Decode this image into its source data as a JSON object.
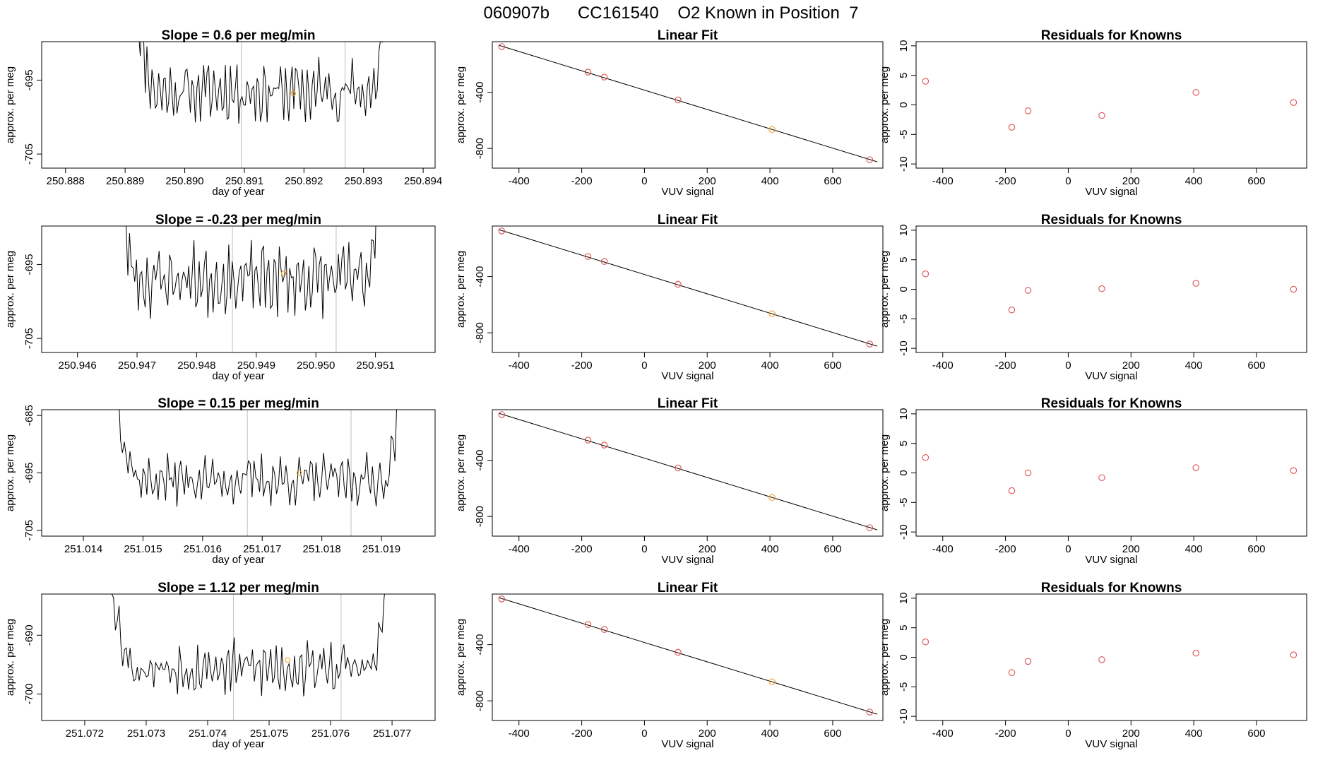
{
  "figure": {
    "title": "060907b      CC161540    O2 Known in Position  7"
  },
  "colors": {
    "trace": "#000000",
    "point_red": "#e05050",
    "point_orange": "#f0a020",
    "vline": "#c8c8c8"
  },
  "chart_data": [
    {
      "type": "line",
      "panel": "time-series",
      "title": "Slope =  0.6  per meg/min",
      "xlabel": "day of year",
      "ylabel": "approx. per meg",
      "xlim": [
        250.8876,
        250.8942
      ],
      "ylim": [
        -706.9,
        -689.8
      ],
      "xticks": [
        250.888,
        250.889,
        250.89,
        250.891,
        250.892,
        250.893,
        250.894
      ],
      "xtick_labels": [
        "250.888",
        "250.889",
        "250.890",
        "250.891",
        "250.892",
        "250.893",
        "250.894"
      ],
      "yticks": [
        -705,
        -695
      ],
      "ytick_labels": [
        "-705",
        "-695"
      ],
      "trace_x_range": [
        250.88917,
        250.89337
      ],
      "trace_base": -696.5,
      "trace_amp": 2.6,
      "vlines": [
        250.89095,
        250.89269
      ],
      "marker": {
        "x": 250.89182,
        "y": -696.8
      },
      "seed": 11
    },
    {
      "type": "scatter",
      "panel": "linear-fit",
      "title": "Linear Fit",
      "xlabel": "VUV signal",
      "ylabel": "approx. per meg",
      "xlim": [
        -485,
        760
      ],
      "ylim": [
        -940,
        -40
      ],
      "xticks": [
        -400,
        -200,
        0,
        200,
        400,
        600
      ],
      "xtick_labels": [
        "-400",
        "-200",
        "0",
        "200",
        "400",
        "600"
      ],
      "yticks": [
        -800,
        -400
      ],
      "ytick_labels": [
        "-800",
        "-400"
      ],
      "points": [
        {
          "x": -455,
          "y": -75,
          "color": "red"
        },
        {
          "x": -180,
          "y": -257,
          "color": "red"
        },
        {
          "x": -128,
          "y": -292,
          "color": "red"
        },
        {
          "x": 107,
          "y": -455,
          "color": "red"
        },
        {
          "x": 407,
          "y": -665,
          "color": "orange"
        },
        {
          "x": 718,
          "y": -880,
          "color": "red"
        }
      ],
      "fit": {
        "slope": -0.688,
        "intercept": -385,
        "x_range": [
          -465,
          742
        ]
      }
    },
    {
      "type": "scatter",
      "panel": "residuals",
      "title": "Residuals for Knowns",
      "xlabel": "VUV signal",
      "ylabel": "approx. per meg",
      "xlim": [
        -485,
        760
      ],
      "ylim": [
        -10.7,
        10.7
      ],
      "xticks": [
        -400,
        -200,
        0,
        200,
        400,
        600
      ],
      "xtick_labels": [
        "-400",
        "-200",
        "0",
        "200",
        "400",
        "600"
      ],
      "yticks": [
        -10,
        -5,
        0,
        5,
        10
      ],
      "ytick_labels": [
        "-10",
        "-5",
        "0",
        "5",
        "10"
      ],
      "points": [
        {
          "x": -455,
          "y": 4.0
        },
        {
          "x": -180,
          "y": -3.8
        },
        {
          "x": -128,
          "y": -1.0
        },
        {
          "x": 107,
          "y": -1.8
        },
        {
          "x": 407,
          "y": 2.1
        },
        {
          "x": 718,
          "y": 0.4
        }
      ]
    },
    {
      "type": "line",
      "panel": "time-series",
      "title": "Slope =  -0.23  per meg/min",
      "xlabel": "day of year",
      "ylabel": "approx. per meg",
      "xlim": [
        250.9454,
        250.952
      ],
      "ylim": [
        -706.9,
        -689.8
      ],
      "xticks": [
        250.946,
        250.947,
        250.948,
        250.949,
        250.95,
        250.951
      ],
      "xtick_labels": [
        "250.946",
        "250.947",
        "250.948",
        "250.949",
        "250.950",
        "250.951"
      ],
      "yticks": [
        -705,
        -695
      ],
      "ytick_labels": [
        "-705",
        "-695"
      ],
      "trace_x_range": [
        250.94667,
        250.95105
      ],
      "trace_base": -697.0,
      "trace_amp": 2.8,
      "vlines": [
        250.9486,
        250.95034
      ],
      "marker": {
        "x": 250.94946,
        "y": -696.2
      },
      "seed": 23
    },
    {
      "type": "scatter",
      "panel": "linear-fit",
      "title": "Linear Fit",
      "xlabel": "VUV signal",
      "ylabel": "approx. per meg",
      "xlim": [
        -485,
        760
      ],
      "ylim": [
        -940,
        -40
      ],
      "xticks": [
        -400,
        -200,
        0,
        200,
        400,
        600
      ],
      "xtick_labels": [
        "-400",
        "-200",
        "0",
        "200",
        "400",
        "600"
      ],
      "yticks": [
        -800,
        -400
      ],
      "ytick_labels": [
        "-800",
        "-400"
      ],
      "points": [
        {
          "x": -455,
          "y": -75,
          "color": "red"
        },
        {
          "x": -180,
          "y": -257,
          "color": "red"
        },
        {
          "x": -128,
          "y": -292,
          "color": "red"
        },
        {
          "x": 107,
          "y": -455,
          "color": "red"
        },
        {
          "x": 407,
          "y": -665,
          "color": "orange"
        },
        {
          "x": 718,
          "y": -880,
          "color": "red"
        }
      ],
      "fit": {
        "slope": -0.688,
        "intercept": -385,
        "x_range": [
          -465,
          742
        ]
      }
    },
    {
      "type": "scatter",
      "panel": "residuals",
      "title": "Residuals for Knowns",
      "xlabel": "VUV signal",
      "ylabel": "approx. per meg",
      "xlim": [
        -485,
        760
      ],
      "ylim": [
        -10.7,
        10.7
      ],
      "xticks": [
        -400,
        -200,
        0,
        200,
        400,
        600
      ],
      "xtick_labels": [
        "-400",
        "-200",
        "0",
        "200",
        "400",
        "600"
      ],
      "yticks": [
        -10,
        -5,
        0,
        5,
        10
      ],
      "ytick_labels": [
        "-10",
        "-5",
        "0",
        "5",
        "10"
      ],
      "points": [
        {
          "x": -455,
          "y": 2.6
        },
        {
          "x": -180,
          "y": -3.5
        },
        {
          "x": -128,
          "y": -0.2
        },
        {
          "x": 107,
          "y": 0.1
        },
        {
          "x": 407,
          "y": 1.0
        },
        {
          "x": 718,
          "y": 0.0
        }
      ]
    },
    {
      "type": "line",
      "panel": "time-series",
      "title": "Slope =  0.15  per meg/min",
      "xlabel": "day of year",
      "ylabel": "approx. per meg",
      "xlim": [
        251.0133,
        251.0199
      ],
      "ylim": [
        -706.0,
        -684.0
      ],
      "xticks": [
        251.014,
        251.015,
        251.016,
        251.017,
        251.018,
        251.019
      ],
      "xtick_labels": [
        "251.014",
        "251.015",
        "251.016",
        "251.017",
        "251.018",
        "251.019"
      ],
      "yticks": [
        -705,
        -695,
        -685
      ],
      "ytick_labels": [
        "-705",
        "-695",
        "-685"
      ],
      "trace_x_range": [
        251.01456,
        251.01929
      ],
      "trace_base": -696.2,
      "trace_amp": 2.5,
      "vlines": [
        251.01675,
        251.01849
      ],
      "marker": {
        "x": 251.01762,
        "y": -695.0
      },
      "seed": 37
    },
    {
      "type": "scatter",
      "panel": "linear-fit",
      "title": "Linear Fit",
      "xlabel": "VUV signal",
      "ylabel": "approx. per meg",
      "xlim": [
        -485,
        760
      ],
      "ylim": [
        -940,
        -40
      ],
      "xticks": [
        -400,
        -200,
        0,
        200,
        400,
        600
      ],
      "xtick_labels": [
        "-400",
        "-200",
        "0",
        "200",
        "400",
        "600"
      ],
      "yticks": [
        -800,
        -400
      ],
      "ytick_labels": [
        "-800",
        "-400"
      ],
      "points": [
        {
          "x": -455,
          "y": -75,
          "color": "red"
        },
        {
          "x": -180,
          "y": -257,
          "color": "red"
        },
        {
          "x": -128,
          "y": -292,
          "color": "red"
        },
        {
          "x": 107,
          "y": -455,
          "color": "red"
        },
        {
          "x": 407,
          "y": -665,
          "color": "orange"
        },
        {
          "x": 718,
          "y": -880,
          "color": "red"
        }
      ],
      "fit": {
        "slope": -0.688,
        "intercept": -385,
        "x_range": [
          -465,
          742
        ]
      }
    },
    {
      "type": "scatter",
      "panel": "residuals",
      "title": "Residuals for Knowns",
      "xlabel": "VUV signal",
      "ylabel": "approx. per meg",
      "xlim": [
        -485,
        760
      ],
      "ylim": [
        -10.7,
        10.7
      ],
      "xticks": [
        -400,
        -200,
        0,
        200,
        400,
        600
      ],
      "xtick_labels": [
        "-400",
        "-200",
        "0",
        "200",
        "400",
        "600"
      ],
      "yticks": [
        -10,
        -5,
        0,
        5,
        10
      ],
      "ytick_labels": [
        "-10",
        "-5",
        "0",
        "5",
        "10"
      ],
      "points": [
        {
          "x": -455,
          "y": 2.6
        },
        {
          "x": -180,
          "y": -3.0
        },
        {
          "x": -128,
          "y": 0.0
        },
        {
          "x": 107,
          "y": -0.8
        },
        {
          "x": 407,
          "y": 0.9
        },
        {
          "x": 718,
          "y": 0.4
        }
      ]
    },
    {
      "type": "line",
      "panel": "time-series",
      "title": "Slope =  1.12  per meg/min",
      "xlabel": "day of year",
      "ylabel": "approx. per meg",
      "xlim": [
        251.0713,
        251.0777
      ],
      "ylim": [
        -704.5,
        -683.0
      ],
      "xticks": [
        251.072,
        251.073,
        251.074,
        251.075,
        251.076,
        251.077
      ],
      "xtick_labels": [
        "251.072",
        "251.073",
        "251.074",
        "251.075",
        "251.076",
        "251.077"
      ],
      "yticks": [
        -700,
        -690
      ],
      "ytick_labels": [
        "-700",
        "-690"
      ],
      "trace_x_range": [
        251.07244,
        251.0769
      ],
      "trace_base": -695.5,
      "trace_amp": 2.7,
      "vlines": [
        251.07442,
        251.07617
      ],
      "marker": {
        "x": 251.0753,
        "y": -694.2
      },
      "seed": 53
    },
    {
      "type": "scatter",
      "panel": "linear-fit",
      "title": "Linear Fit",
      "xlabel": "VUV signal",
      "ylabel": "approx. per meg",
      "xlim": [
        -485,
        760
      ],
      "ylim": [
        -940,
        -40
      ],
      "xticks": [
        -400,
        -200,
        0,
        200,
        400,
        600
      ],
      "xtick_labels": [
        "-400",
        "-200",
        "0",
        "200",
        "400",
        "600"
      ],
      "yticks": [
        -800,
        -400
      ],
      "ytick_labels": [
        "-800",
        "-400"
      ],
      "points": [
        {
          "x": -455,
          "y": -75,
          "color": "red"
        },
        {
          "x": -180,
          "y": -257,
          "color": "red"
        },
        {
          "x": -128,
          "y": -292,
          "color": "red"
        },
        {
          "x": 107,
          "y": -455,
          "color": "red"
        },
        {
          "x": 407,
          "y": -665,
          "color": "orange"
        },
        {
          "x": 718,
          "y": -880,
          "color": "red"
        }
      ],
      "fit": {
        "slope": -0.688,
        "intercept": -385,
        "x_range": [
          -465,
          742
        ]
      }
    },
    {
      "type": "scatter",
      "panel": "residuals",
      "title": "Residuals for Knowns",
      "xlabel": "VUV signal",
      "ylabel": "approx. per meg",
      "xlim": [
        -485,
        760
      ],
      "ylim": [
        -10.7,
        10.7
      ],
      "xticks": [
        -400,
        -200,
        0,
        200,
        400,
        600
      ],
      "xtick_labels": [
        "-400",
        "-200",
        "0",
        "200",
        "400",
        "600"
      ],
      "yticks": [
        -10,
        -5,
        0,
        5,
        10
      ],
      "ytick_labels": [
        "-10",
        "-5",
        "0",
        "5",
        "10"
      ],
      "points": [
        {
          "x": -455,
          "y": 2.6
        },
        {
          "x": -180,
          "y": -2.6
        },
        {
          "x": -128,
          "y": -0.7
        },
        {
          "x": 107,
          "y": -0.4
        },
        {
          "x": 407,
          "y": 0.7
        },
        {
          "x": 718,
          "y": 0.4
        }
      ]
    }
  ]
}
